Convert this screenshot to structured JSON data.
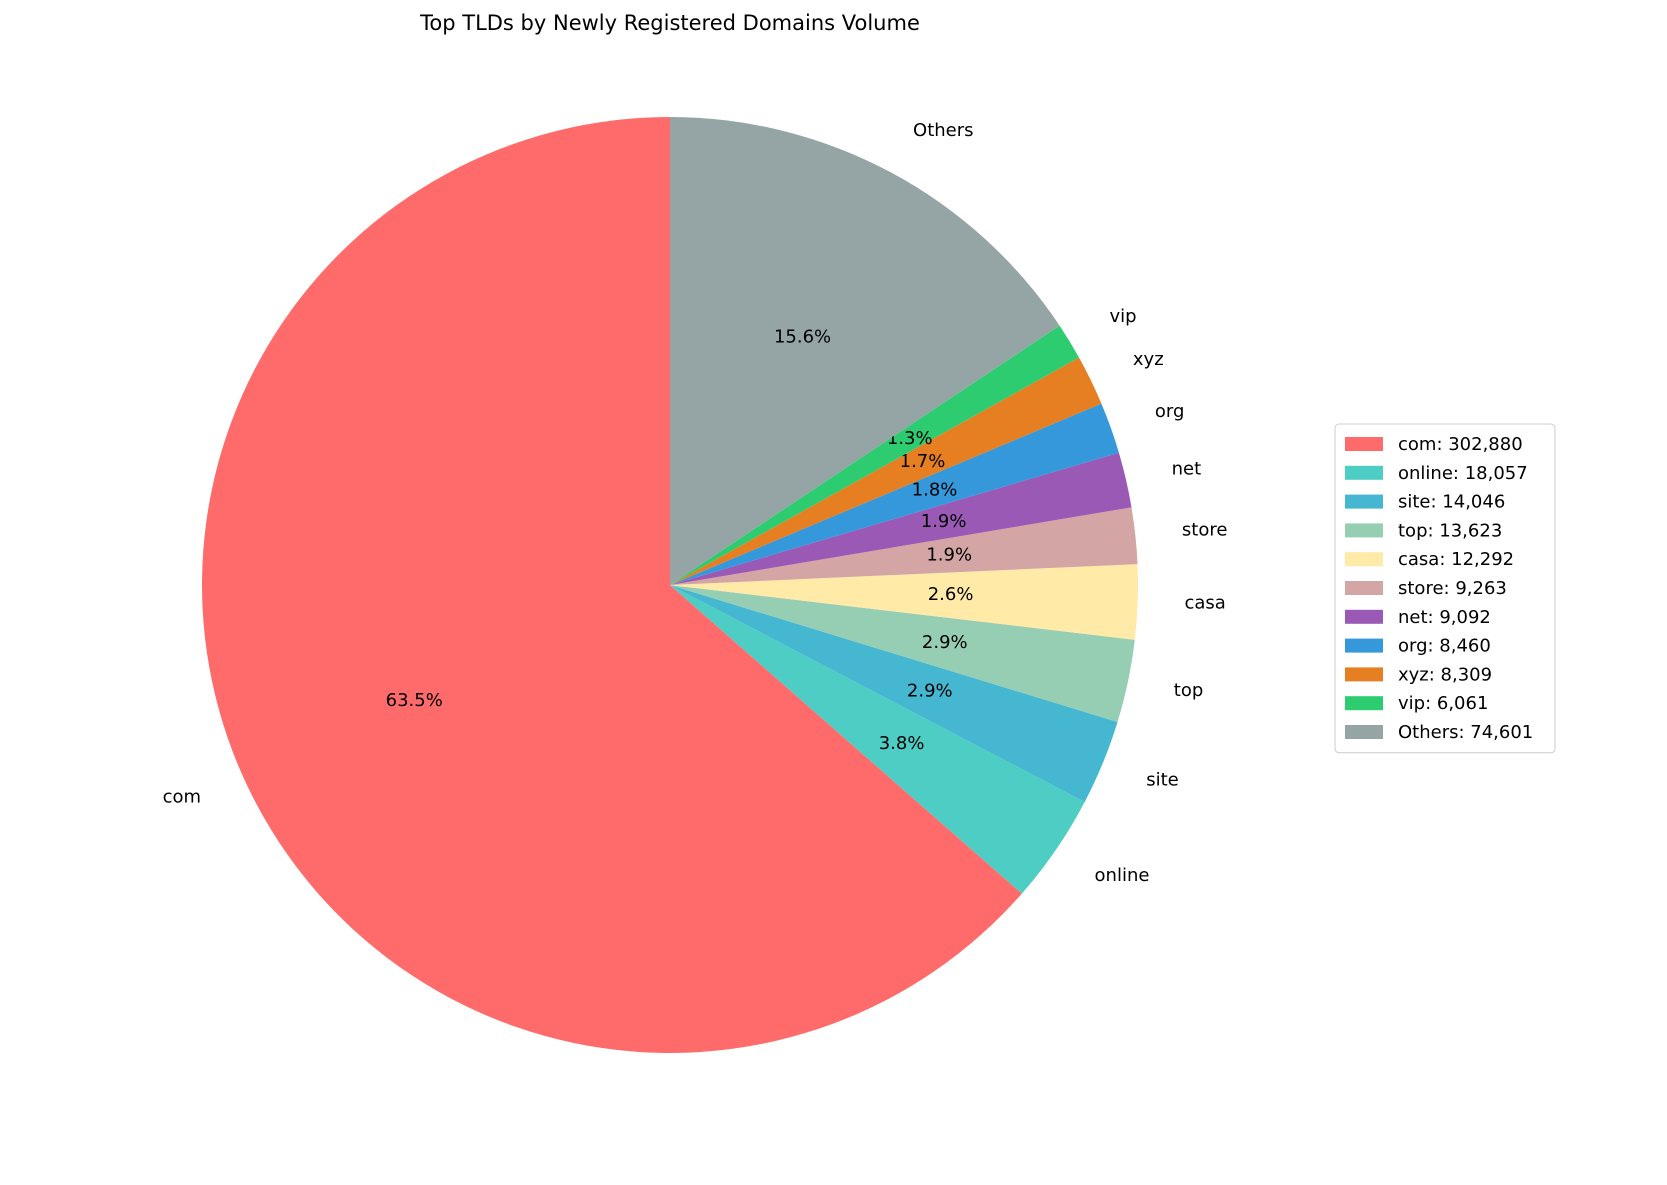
{
  "chart_data": {
    "type": "pie",
    "title": "Top TLDs by Newly Registered Domains Volume",
    "categories": [
      "com",
      "online",
      "site",
      "top",
      "casa",
      "store",
      "net",
      "org",
      "xyz",
      "vip",
      "Others"
    ],
    "values": [
      302880,
      18057,
      14046,
      13623,
      12292,
      9263,
      9092,
      8460,
      8309,
      6061,
      74601
    ],
    "percent_labels": [
      {
        "value": 63.5,
        "label": "63.5%"
      },
      {
        "value": 3.8,
        "label": "3.8%"
      },
      {
        "value": 2.9,
        "label": "2.9%"
      },
      {
        "value": 2.9,
        "label": "2.9%"
      },
      {
        "value": 2.6,
        "label": "2.6%"
      },
      {
        "value": 1.9,
        "label": "1.9%"
      },
      {
        "value": 1.9,
        "label": "1.9%"
      },
      {
        "value": 1.8,
        "label": "1.8%"
      },
      {
        "value": 1.7,
        "label": "1.7%"
      },
      {
        "value": 1.3,
        "label": "1.3%"
      },
      {
        "value": 15.6,
        "label": "15.6%"
      }
    ],
    "legend_labels": [
      "com: 302,880",
      "online: 18,057",
      "site: 14,046",
      "top: 13,623",
      "casa: 12,292",
      "store: 9,263",
      "net: 9,092",
      "org: 8,460",
      "xyz: 8,309",
      "vip: 6,061",
      "Others: 74,601"
    ],
    "colors": [
      "#ff6b6b",
      "#4ecdc4",
      "#45b7d1",
      "#96ceb4",
      "#ffeaa7",
      "#d4a5a5",
      "#9b59b6",
      "#3498db",
      "#e67e22",
      "#2ecc71",
      "#95a5a6"
    ],
    "legend_position": "right"
  }
}
